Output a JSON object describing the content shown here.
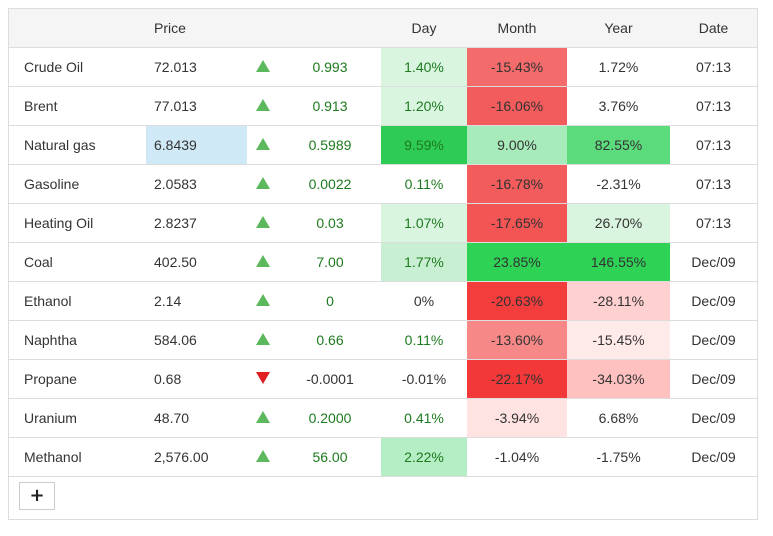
{
  "columns": {
    "price": "Price",
    "day": "Day",
    "month": "Month",
    "year": "Year",
    "date": "Date"
  },
  "rows": [
    {
      "name": "Crude Oil",
      "price": "72.013",
      "direction": "up",
      "change": "0.993",
      "day": "1.40%",
      "month": "-15.43%",
      "year": "1.72%",
      "date": "07:13"
    },
    {
      "name": "Brent",
      "price": "77.013",
      "direction": "up",
      "change": "0.913",
      "day": "1.20%",
      "month": "-16.06%",
      "year": "3.76%",
      "date": "07:13"
    },
    {
      "name": "Natural gas",
      "price": "6.8439",
      "direction": "up",
      "change": "0.5989",
      "day": "9.59%",
      "month": "9.00%",
      "year": "82.55%",
      "date": "07:13"
    },
    {
      "name": "Gasoline",
      "price": "2.0583",
      "direction": "up",
      "change": "0.0022",
      "day": "0.11%",
      "month": "-16.78%",
      "year": "-2.31%",
      "date": "07:13"
    },
    {
      "name": "Heating Oil",
      "price": "2.8237",
      "direction": "up",
      "change": "0.03",
      "day": "1.07%",
      "month": "-17.65%",
      "year": "26.70%",
      "date": "07:13"
    },
    {
      "name": "Coal",
      "price": "402.50",
      "direction": "up",
      "change": "7.00",
      "day": "1.77%",
      "month": "23.85%",
      "year": "146.55%",
      "date": "Dec/09"
    },
    {
      "name": "Ethanol",
      "price": "2.14",
      "direction": "up",
      "change": "0",
      "day": "0%",
      "month": "-20.63%",
      "year": "-28.11%",
      "date": "Dec/09"
    },
    {
      "name": "Naphtha",
      "price": "584.06",
      "direction": "up",
      "change": "0.66",
      "day": "0.11%",
      "month": "-13.60%",
      "year": "-15.45%",
      "date": "Dec/09"
    },
    {
      "name": "Propane",
      "price": "0.68",
      "direction": "down",
      "change": "-0.0001",
      "day": "-0.01%",
      "month": "-22.17%",
      "year": "-34.03%",
      "date": "Dec/09"
    },
    {
      "name": "Uranium",
      "price": "48.70",
      "direction": "up",
      "change": "0.2000",
      "day": "0.41%",
      "month": "-3.94%",
      "year": "6.68%",
      "date": "Dec/09"
    },
    {
      "name": "Methanol",
      "price": "2,576.00",
      "direction": "up",
      "change": "56.00",
      "day": "2.22%",
      "month": "-1.04%",
      "year": "-1.75%",
      "date": "Dec/09"
    }
  ],
  "highlight": {
    "price_cell_color": "#d0e9f6",
    "row_index": 2
  },
  "cell_colors": {
    "day": [
      "#d9f5e0",
      "#d9f5e0",
      "#2ecc55",
      "#ffffff",
      "#d9f5e0",
      "#c8efd2",
      "#ffffff",
      "#ffffff",
      "#ffffff",
      "#ffffff",
      "#b5eec5"
    ],
    "month": [
      "#f46b6b",
      "#f35c5c",
      "#a8ebbb",
      "#f35c5c",
      "#f35555",
      "#2ed255",
      "#f33c3c",
      "#f78888",
      "#f23838",
      "#ffe3e3",
      "#ffffff"
    ],
    "year": [
      "#ffffff",
      "#ffffff",
      "#5cdb7d",
      "#ffffff",
      "#d9f5e0",
      "#2ed255",
      "#ffd0d0",
      "#ffeaea",
      "#ffc0c0",
      "#ffffff",
      "#ffffff"
    ]
  },
  "add_button_label": "+"
}
